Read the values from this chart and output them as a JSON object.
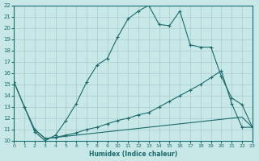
{
  "xlabel": "Humidex (Indice chaleur)",
  "xlim": [
    0,
    23
  ],
  "ylim": [
    10,
    22
  ],
  "xticks": [
    0,
    1,
    2,
    3,
    4,
    5,
    6,
    7,
    8,
    9,
    10,
    11,
    12,
    13,
    14,
    15,
    16,
    17,
    18,
    19,
    20,
    21,
    22,
    23
  ],
  "yticks": [
    10,
    11,
    12,
    13,
    14,
    15,
    16,
    17,
    18,
    19,
    20,
    21,
    22
  ],
  "background_color": "#c8e8e8",
  "line_color": "#1a6b6b",
  "grid_color": "#aacccc",
  "line1_x": [
    0,
    1,
    2,
    3,
    4,
    5,
    6,
    7,
    8,
    9,
    10,
    11,
    12,
    13,
    14,
    15,
    16,
    17,
    18,
    19,
    20,
    21,
    22,
    23
  ],
  "line1_y": [
    15.2,
    13.0,
    10.8,
    10.0,
    10.5,
    11.8,
    13.3,
    15.2,
    16.7,
    17.3,
    19.2,
    20.8,
    21.5,
    22.0,
    20.3,
    20.2,
    21.5,
    18.5,
    18.3,
    18.3,
    15.7,
    13.8,
    13.2,
    11.2
  ],
  "line2_x": [
    0,
    1,
    2,
    3,
    4,
    5,
    6,
    7,
    8,
    9,
    10,
    11,
    12,
    13,
    14,
    15,
    16,
    17,
    18,
    19,
    20,
    21,
    22,
    23
  ],
  "line2_y": [
    15.2,
    13.0,
    11.0,
    10.2,
    10.3,
    10.5,
    10.7,
    11.0,
    11.2,
    11.5,
    11.8,
    12.0,
    12.3,
    12.5,
    13.0,
    13.5,
    14.0,
    14.5,
    15.0,
    15.6,
    16.2,
    13.3,
    11.2,
    11.2
  ],
  "line3_x": [
    2,
    3,
    4,
    5,
    6,
    7,
    8,
    9,
    10,
    11,
    12,
    13,
    14,
    15,
    16,
    17,
    18,
    19,
    20,
    21,
    22,
    23
  ],
  "line3_y": [
    11.0,
    10.2,
    10.3,
    10.4,
    10.5,
    10.6,
    10.7,
    10.8,
    10.9,
    11.0,
    11.1,
    11.2,
    11.3,
    11.4,
    11.5,
    11.6,
    11.7,
    11.8,
    11.9,
    12.0,
    12.1,
    11.2
  ]
}
